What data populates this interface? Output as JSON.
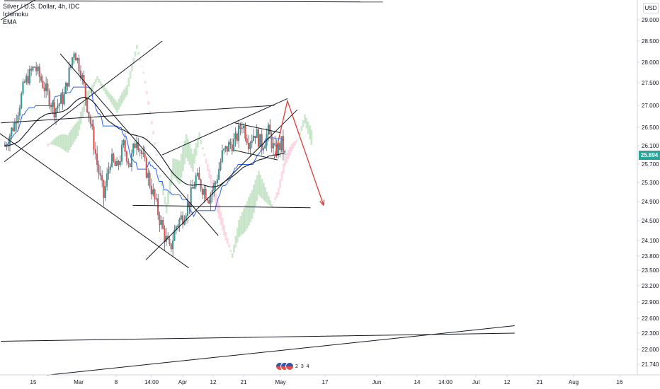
{
  "legend": {
    "symbol": "Silver / U.S. Dollar, 4h, IDC",
    "indicators": [
      "Ichimoku",
      "EMA"
    ]
  },
  "currency_button": "USD",
  "last_price_label": "25.894",
  "events": {
    "icon": "us-flag-icon",
    "count": "2 3 4"
  },
  "colors": {
    "up_candle": "#26a69a",
    "down_candle": "#ef5350",
    "trendline": "#131722",
    "projection": "#e53935",
    "kijun": "#2962ff",
    "cloud_bull": "#a5d6a7",
    "cloud_bear": "#f8bbd0",
    "ema": "#131722",
    "badge": "#26a69a"
  },
  "chart_data": {
    "type": "candlestick",
    "title": "Silver / U.S. Dollar, 4h, IDC",
    "xlabel": "",
    "ylabel": "",
    "x_ticks": [
      "15",
      "Mar",
      "8",
      "14:00",
      "Apr",
      "12",
      "21",
      "May",
      "17",
      "Jun",
      "14",
      "14:00",
      "Jul",
      "12",
      "21",
      "Aug",
      "16"
    ],
    "y_ticks": [
      "29.000",
      "28.500",
      "28.000",
      "27.500",
      "27.000",
      "26.500",
      "26.100",
      "25.700",
      "25.300",
      "24.900",
      "24.500",
      "24.100",
      "23.800",
      "23.500",
      "23.200",
      "22.900",
      "22.600",
      "22.300",
      "22.000",
      "21.740"
    ],
    "last_price": 25.894,
    "ylim": [
      21.5,
      29.4
    ],
    "grid": false,
    "price_path": [
      [
        0,
        26.1
      ],
      [
        3,
        26.6
      ],
      [
        6,
        27.5
      ],
      [
        9,
        27.9
      ],
      [
        12,
        27.4
      ],
      [
        15,
        26.9
      ],
      [
        18,
        27.2
      ],
      [
        21,
        28.3
      ],
      [
        23,
        27.8
      ],
      [
        26,
        26.6
      ],
      [
        28,
        25.7
      ],
      [
        30,
        25.0
      ],
      [
        32,
        25.8
      ],
      [
        34,
        25.6
      ],
      [
        36,
        26.1
      ],
      [
        38,
        25.7
      ],
      [
        40,
        26.3
      ],
      [
        42,
        25.8
      ],
      [
        44,
        25.3
      ],
      [
        46,
        24.8
      ],
      [
        48,
        24.3
      ],
      [
        50,
        23.9
      ],
      [
        52,
        24.4
      ],
      [
        54,
        24.6
      ],
      [
        56,
        24.9
      ],
      [
        58,
        25.4
      ],
      [
        60,
        25.2
      ],
      [
        62,
        25.0
      ],
      [
        64,
        25.3
      ],
      [
        66,
        25.9
      ],
      [
        68,
        26.1
      ],
      [
        70,
        26.2
      ],
      [
        72,
        26.6
      ],
      [
        74,
        26.2
      ],
      [
        76,
        26.4
      ],
      [
        78,
        26.1
      ],
      [
        80,
        26.4
      ],
      [
        82,
        25.95
      ],
      [
        84,
        26.15
      ],
      [
        85,
        25.89
      ]
    ],
    "drawn_lines": [
      {
        "name": "descending-channel-upper",
        "points": [
          [
            17,
            28.2
          ],
          [
            65,
            24.2
          ]
        ]
      },
      {
        "name": "descending-channel-lower",
        "points": [
          [
            -2,
            26.4
          ],
          [
            56,
            23.55
          ]
        ]
      },
      {
        "name": "rising-line-left",
        "points": [
          [
            0,
            25.75
          ],
          [
            48,
            28.5
          ]
        ]
      },
      {
        "name": "wedge-upper",
        "points": [
          [
            -1,
            26.6
          ],
          [
            82,
            27.0
          ]
        ]
      },
      {
        "name": "rising-trendline",
        "points": [
          [
            43,
            23.72
          ],
          [
            89,
            26.9
          ]
        ]
      },
      {
        "name": "recent-rise-line",
        "points": [
          [
            48,
            25.9
          ],
          [
            86,
            27.15
          ]
        ]
      },
      {
        "name": "support-horizontal",
        "points": [
          [
            39,
            24.82
          ],
          [
            93,
            24.77
          ]
        ]
      },
      {
        "name": "triangle-top",
        "points": [
          [
            70,
            26.6
          ],
          [
            84,
            26.38
          ]
        ]
      },
      {
        "name": "triangle-bottom",
        "points": [
          [
            70,
            26.0
          ],
          [
            83,
            25.79
          ]
        ]
      },
      {
        "name": "top-horizontal",
        "points": [
          [
            0,
            29.45
          ],
          [
            115,
            29.42
          ]
        ]
      },
      {
        "name": "top-left-diagonal",
        "points": [
          [
            -1,
            29.0
          ],
          [
            10,
            29.5
          ]
        ]
      },
      {
        "name": "bottom-horizontal",
        "points": [
          [
            -1,
            22.15
          ],
          [
            155,
            22.3
          ]
        ]
      },
      {
        "name": "bottom-rising-line",
        "points": [
          [
            13,
            21.55
          ],
          [
            155,
            22.45
          ]
        ]
      }
    ],
    "projection": {
      "points": [
        [
          82,
          25.82
        ],
        [
          86,
          27.1
        ],
        [
          97,
          24.82
        ]
      ],
      "color": "#e53935"
    }
  }
}
